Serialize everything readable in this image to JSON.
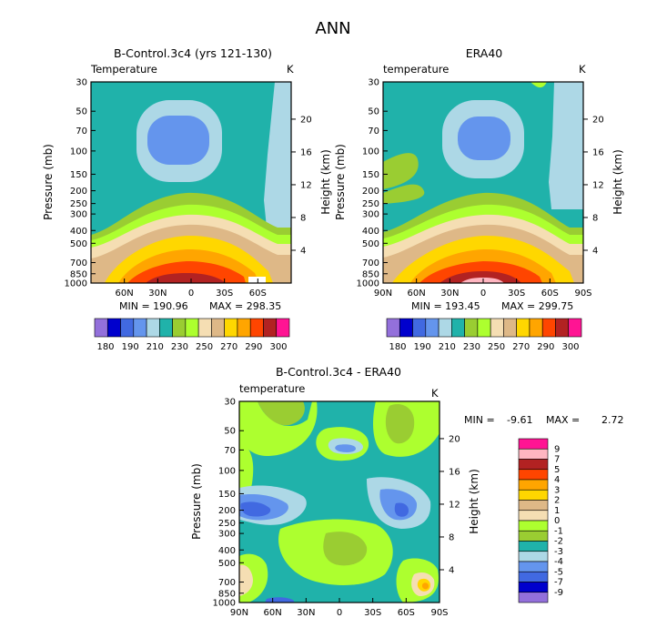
{
  "page_title": "ANN",
  "colors": {
    "c180": "#9370db",
    "c190a": "#0000cd",
    "c190b": "#4169e1",
    "c200": "#6495ed",
    "c210": "#add8e6",
    "c220": "#20b2aa",
    "c230": "#9acd32",
    "c240": "#adff2f",
    "c250": "#f5deb3",
    "c260": "#deb887",
    "c270": "#ffd700",
    "c275": "#ffa500",
    "c280": "#ff4500",
    "c290": "#b22222",
    "c295": "#ffb6c1",
    "c300": "#ff1493"
  },
  "chart_data": [
    {
      "id": "control",
      "type": "contour",
      "title": "B-Control.3c4 (yrs 121-130)",
      "variable": "Temperature",
      "units": "K",
      "ylabel": "Pressure (mb)",
      "y2label": "Height (km)",
      "pressure_ticks": [
        "30",
        "50",
        "70",
        "100",
        "150",
        "200",
        "250",
        "300",
        "400",
        "500",
        "700",
        "850",
        "1000"
      ],
      "height_ticks": [
        "20",
        "16",
        "12",
        "8",
        "4"
      ],
      "lat_ticks": [
        "60N",
        "30N",
        "0",
        "30S",
        "60S"
      ],
      "min_label": "MIN = 190.96",
      "max_label": "MAX = 298.35",
      "min": 190.96,
      "max": 298.35,
      "colorbar_labels": [
        "180",
        "190",
        "210",
        "230",
        "250",
        "270",
        "290",
        "300"
      ],
      "colorbar_colors": [
        "#9370db",
        "#0000cd",
        "#4169e1",
        "#6495ed",
        "#add8e6",
        "#20b2aa",
        "#9acd32",
        "#adff2f",
        "#f5deb3",
        "#deb887",
        "#ffd700",
        "#ffa500",
        "#ff4500",
        "#b22222",
        "#ff1493"
      ]
    },
    {
      "id": "era40",
      "type": "contour",
      "title": "ERA40",
      "variable": "temperature",
      "units": "K",
      "ylabel": "Pressure (mb)",
      "y2label": "Height (km)",
      "pressure_ticks": [
        "30",
        "50",
        "70",
        "100",
        "150",
        "200",
        "250",
        "300",
        "400",
        "500",
        "700",
        "850",
        "1000"
      ],
      "height_ticks": [
        "20",
        "16",
        "12",
        "8",
        "4"
      ],
      "lat_ticks": [
        "90N",
        "60N",
        "30N",
        "0",
        "30S",
        "60S",
        "90S"
      ],
      "min_label": "MIN = 193.45",
      "max_label": "MAX = 299.75",
      "min": 193.45,
      "max": 299.75,
      "colorbar_labels": [
        "180",
        "190",
        "210",
        "230",
        "250",
        "270",
        "290",
        "300"
      ],
      "colorbar_colors": [
        "#9370db",
        "#0000cd",
        "#4169e1",
        "#6495ed",
        "#add8e6",
        "#20b2aa",
        "#9acd32",
        "#adff2f",
        "#f5deb3",
        "#deb887",
        "#ffd700",
        "#ffa500",
        "#ff4500",
        "#b22222",
        "#ff1493"
      ]
    },
    {
      "id": "diff",
      "type": "contour",
      "title": "B-Control.3c4 - ERA40",
      "variable": "temperature",
      "units": "K",
      "ylabel": "Pressure (mb)",
      "y2label": "Height (km)",
      "pressure_ticks": [
        "30",
        "50",
        "70",
        "100",
        "150",
        "200",
        "250",
        "300",
        "400",
        "500",
        "700",
        "850",
        "1000"
      ],
      "height_ticks": [
        "20",
        "16",
        "12",
        "8",
        "4"
      ],
      "lat_ticks": [
        "90N",
        "60N",
        "30N",
        "0",
        "30S",
        "60S",
        "90S"
      ],
      "min_label": "MIN =",
      "min_value": "-9.61",
      "max_label": "MAX =",
      "max_value": "2.72",
      "min": -9.61,
      "max": 2.72,
      "colorbar_labels": [
        "9",
        "7",
        "5",
        "4",
        "3",
        "2",
        "1",
        "0",
        "-1",
        "-2",
        "-3",
        "-4",
        "-5",
        "-7",
        "-9"
      ],
      "colorbar_colors": [
        "#ff1493",
        "#ffb6c1",
        "#b22222",
        "#ff4500",
        "#ffa500",
        "#ffd700",
        "#deb887",
        "#f5deb3",
        "#adff2f",
        "#9acd32",
        "#20b2aa",
        "#add8e6",
        "#6495ed",
        "#4169e1",
        "#0000cd",
        "#9370db"
      ]
    }
  ]
}
